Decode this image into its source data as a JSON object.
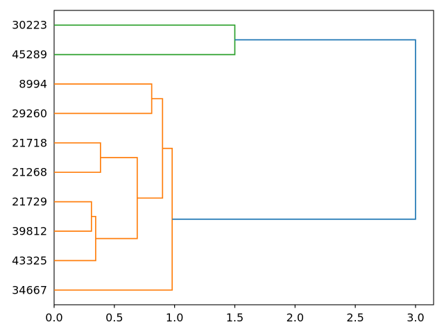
{
  "chart_data": {
    "type": "dendrogram",
    "orientation": "left-to-right",
    "title": "",
    "leaves": [
      "30223",
      "45289",
      "8994",
      "29260",
      "21718",
      "21268",
      "21729",
      "39812",
      "43325",
      "34667"
    ],
    "merges": [
      {
        "id": "m1",
        "a": "leaf:21729",
        "b": "leaf:39812",
        "height": 0.31,
        "color_key": "orange"
      },
      {
        "id": "m2",
        "a": "m1",
        "b": "leaf:43325",
        "height": 0.345,
        "color_key": "orange"
      },
      {
        "id": "m3",
        "a": "leaf:21718",
        "b": "leaf:21268",
        "height": 0.385,
        "color_key": "orange"
      },
      {
        "id": "m4",
        "a": "m3",
        "b": "m2",
        "height": 0.69,
        "color_key": "orange"
      },
      {
        "id": "m5",
        "a": "leaf:8994",
        "b": "leaf:29260",
        "height": 0.81,
        "color_key": "orange"
      },
      {
        "id": "m6",
        "a": "m5",
        "b": "m4",
        "height": 0.9,
        "color_key": "orange"
      },
      {
        "id": "m7",
        "a": "m6",
        "b": "leaf:34667",
        "height": 0.98,
        "color_key": "orange"
      },
      {
        "id": "m8",
        "a": "leaf:30223",
        "b": "leaf:45289",
        "height": 1.5,
        "color_key": "green"
      },
      {
        "id": "m9",
        "a": "m8",
        "b": "m7",
        "height": 3.0,
        "color_key": "blue"
      }
    ],
    "x_ticks": [
      "0.0",
      "0.5",
      "1.0",
      "1.5",
      "2.0",
      "2.5",
      "3.0"
    ],
    "xlim": [
      0,
      3.15
    ],
    "grid": false,
    "legend": null,
    "colors": {
      "orange": "#ff7f0e",
      "green": "#2ca02c",
      "blue": "#1f77b4",
      "axis": "#000000"
    }
  }
}
